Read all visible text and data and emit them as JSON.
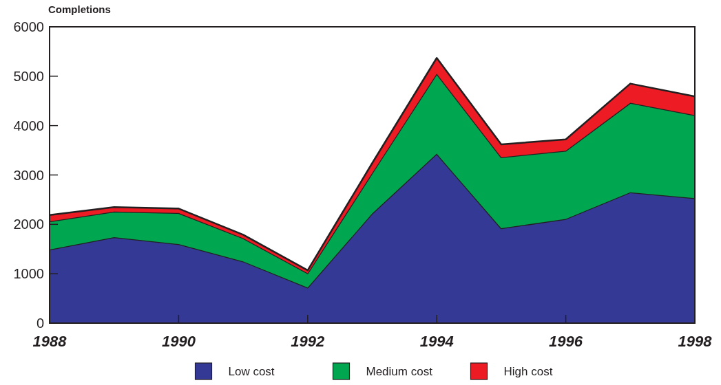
{
  "chart_data": {
    "type": "area",
    "stacked": true,
    "ylabel": "Completions",
    "x": [
      1988,
      1989,
      1990,
      1991,
      1992,
      1993,
      1994,
      1995,
      1996,
      1997,
      1998
    ],
    "xlim": [
      1988,
      1998
    ],
    "xticks": [
      1988,
      1990,
      1992,
      1994,
      1996,
      1998
    ],
    "ylim": [
      0,
      6000
    ],
    "yticks": [
      0,
      1000,
      2000,
      3000,
      4000,
      5000,
      6000
    ],
    "legend": "bottom",
    "grid": false,
    "series": [
      {
        "name": "Low cost",
        "color": "#343996",
        "values": [
          1490,
          1740,
          1600,
          1250,
          720,
          2220,
          3430,
          1920,
          2110,
          2650,
          2530
        ]
      },
      {
        "name": "Medium cost",
        "color": "#00a650",
        "values": [
          570,
          520,
          630,
          470,
          290,
          820,
          1620,
          1440,
          1380,
          1810,
          1680
        ]
      },
      {
        "name": "High cost",
        "color": "#ed1c24",
        "values": [
          130,
          90,
          90,
          70,
          60,
          200,
          320,
          260,
          230,
          390,
          380
        ]
      }
    ]
  }
}
